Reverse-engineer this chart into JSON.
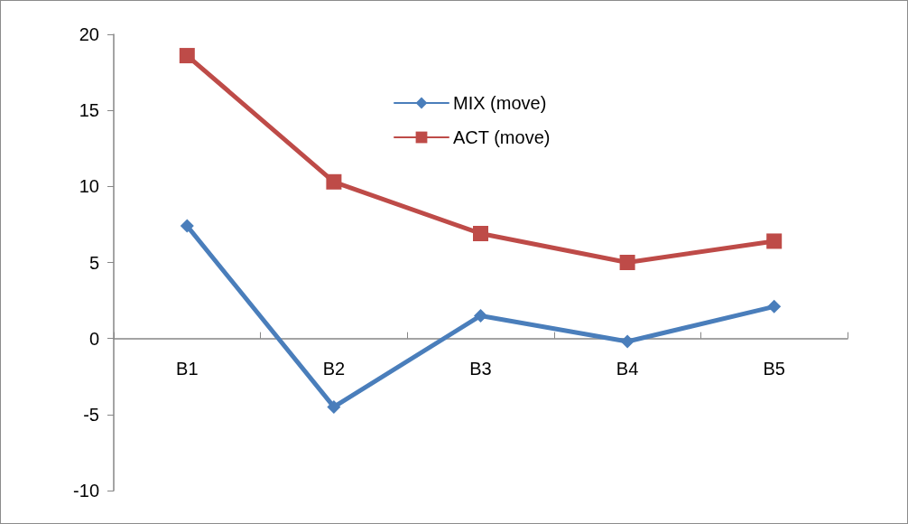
{
  "chart_data": {
    "type": "line",
    "categories": [
      "B1",
      "B2",
      "B3",
      "B4",
      "B5"
    ],
    "series": [
      {
        "name": "MIX (move)",
        "color": "#4a7ebb",
        "marker": "diamond",
        "values": [
          7.4,
          -4.5,
          1.5,
          -0.2,
          2.1
        ]
      },
      {
        "name": "ACT (move)",
        "color": "#be4b48",
        "marker": "square",
        "values": [
          18.6,
          10.3,
          6.9,
          5.0,
          6.4
        ]
      }
    ],
    "ylim": [
      -10,
      20
    ],
    "yticks": [
      -10,
      -5,
      0,
      5,
      10,
      15,
      20
    ],
    "grid": false,
    "legend": "top",
    "line_style": "solid"
  }
}
